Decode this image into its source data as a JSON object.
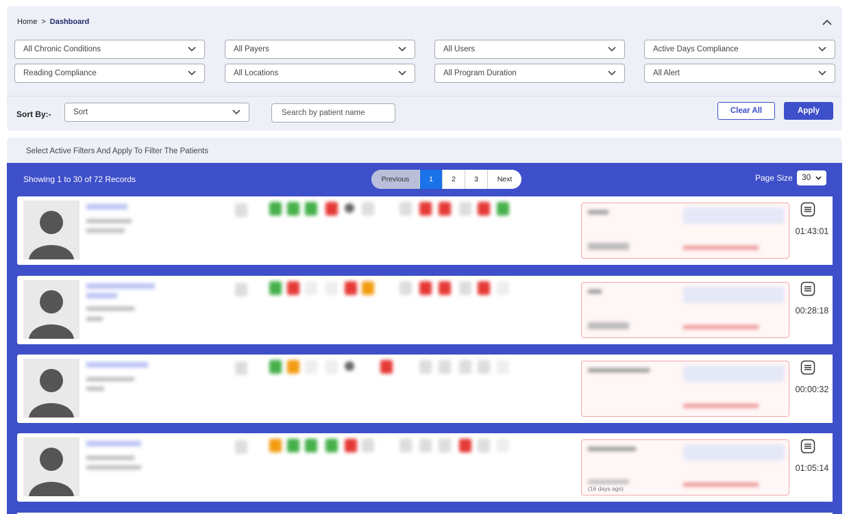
{
  "breadcrumb": {
    "home": "Home",
    "separator": ">",
    "current": "Dashboard"
  },
  "filters": {
    "row1": [
      "All Chronic Conditions",
      "All Payers",
      "All Users",
      "Active Days Compliance"
    ],
    "row2": [
      "Reading Compliance",
      "All Locations",
      "All Program Duration",
      "All Alert"
    ]
  },
  "sort": {
    "label": "Sort By:-",
    "value": "Sort"
  },
  "search": {
    "placeholder": "Search by patient name"
  },
  "buttons": {
    "clear_all": "Clear All",
    "apply": "Apply"
  },
  "info_text": "Select Active Filters And Apply To Filter The Patients",
  "records_text": "Showing 1 to 30 of 72 Records",
  "pagination": {
    "previous": "Previous",
    "pages": [
      "1",
      "2",
      "3"
    ],
    "active_page": "1",
    "next": "Next"
  },
  "page_size": {
    "label": "Page Size",
    "value": "30"
  },
  "patients": [
    {
      "timer": "01:43:01"
    },
    {
      "timer": "00:28:18"
    },
    {
      "timer": "00:00:32"
    },
    {
      "timer": "01:05:14",
      "notes_days_ago": "(16 days ago)"
    }
  ],
  "colors": {
    "primary": "#3d4fc9",
    "panel_bg": "#eef0f8",
    "active_page": "#1a73e8"
  }
}
